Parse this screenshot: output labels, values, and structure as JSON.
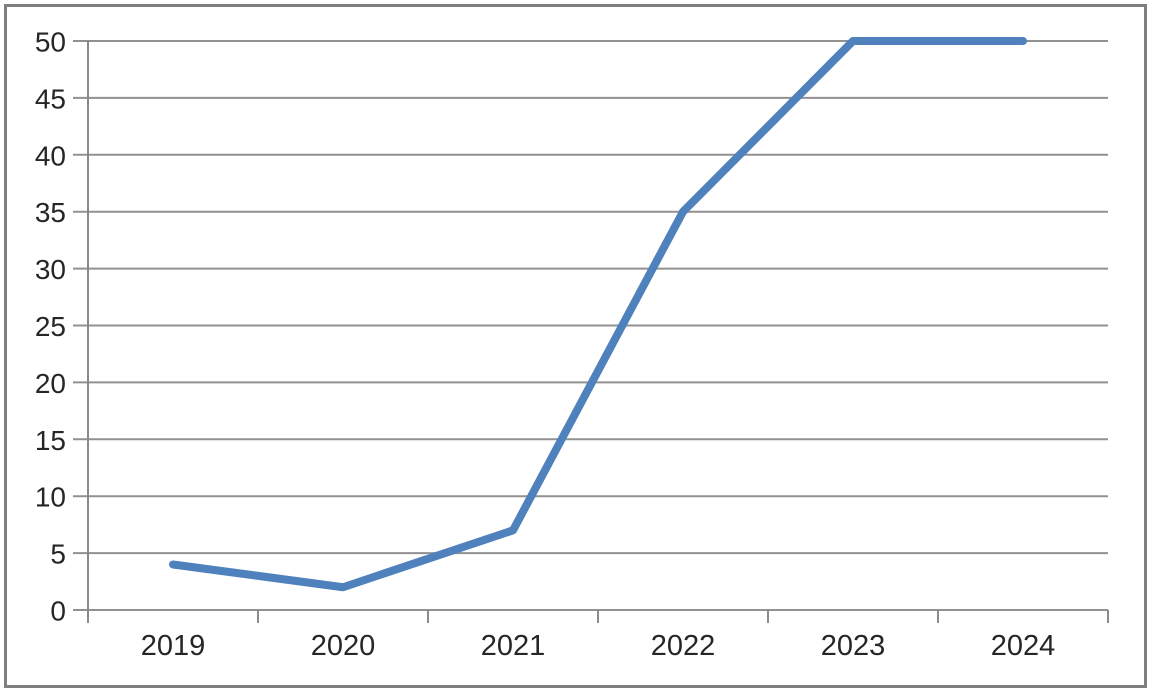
{
  "page": {
    "background_color": "#ffffff",
    "frame_border_color": "#7f7f7f"
  },
  "chart_data": {
    "type": "line",
    "title": "",
    "xlabel": "",
    "ylabel": "",
    "categories": [
      "2019",
      "2020",
      "2021",
      "2022",
      "2023",
      "2024"
    ],
    "values": [
      4,
      2,
      7,
      35,
      50,
      50
    ],
    "ylim": [
      0,
      50
    ],
    "ytick_step": 5,
    "ytick_labels": [
      "0",
      "5",
      "10",
      "15",
      "20",
      "25",
      "30",
      "35",
      "40",
      "45",
      "50"
    ],
    "grid": "horizontal",
    "legend_position": "none",
    "line_color": "#4F81BD",
    "gridline_color": "#919191",
    "axis_color": "#8a8a8a",
    "tick_label_color": "#262626"
  }
}
